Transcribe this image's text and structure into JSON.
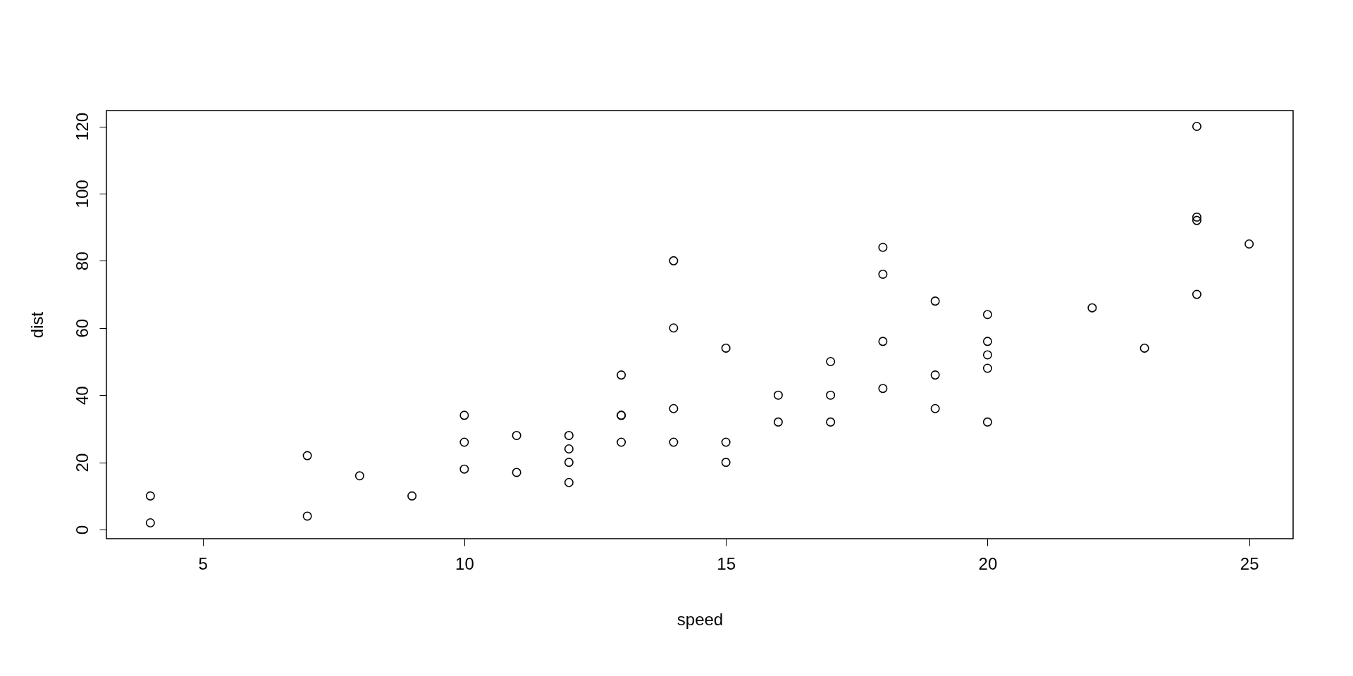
{
  "chart_data": {
    "type": "scatter",
    "xlabel": "speed",
    "ylabel": "dist",
    "x": [
      4,
      4,
      7,
      7,
      8,
      9,
      10,
      10,
      10,
      11,
      11,
      12,
      12,
      12,
      12,
      13,
      13,
      13,
      13,
      14,
      14,
      14,
      14,
      15,
      15,
      15,
      16,
      16,
      17,
      17,
      17,
      18,
      18,
      18,
      18,
      19,
      19,
      19,
      20,
      20,
      20,
      20,
      20,
      22,
      23,
      24,
      24,
      24,
      24,
      25
    ],
    "series": [
      {
        "color": "#000000",
        "values": [
          2,
          10,
          4,
          22,
          16,
          10,
          18,
          26,
          34,
          17,
          28,
          14,
          20,
          24,
          28,
          26,
          34,
          34,
          46,
          26,
          36,
          60,
          80,
          20,
          26,
          54,
          32,
          40,
          32,
          40,
          50,
          42,
          56,
          76,
          84,
          36,
          46,
          68,
          32,
          48,
          52,
          56,
          64,
          66,
          54,
          70,
          92,
          93,
          120,
          85
        ]
      }
    ],
    "xlim": [
      3.16,
      25.84
    ],
    "ylim": [
      -2.72,
      124.72
    ],
    "xticks": [
      5,
      10,
      15,
      20,
      25
    ],
    "yticks": [
      0,
      20,
      40,
      60,
      80,
      100,
      120
    ],
    "marker": "circle",
    "grid": false
  }
}
